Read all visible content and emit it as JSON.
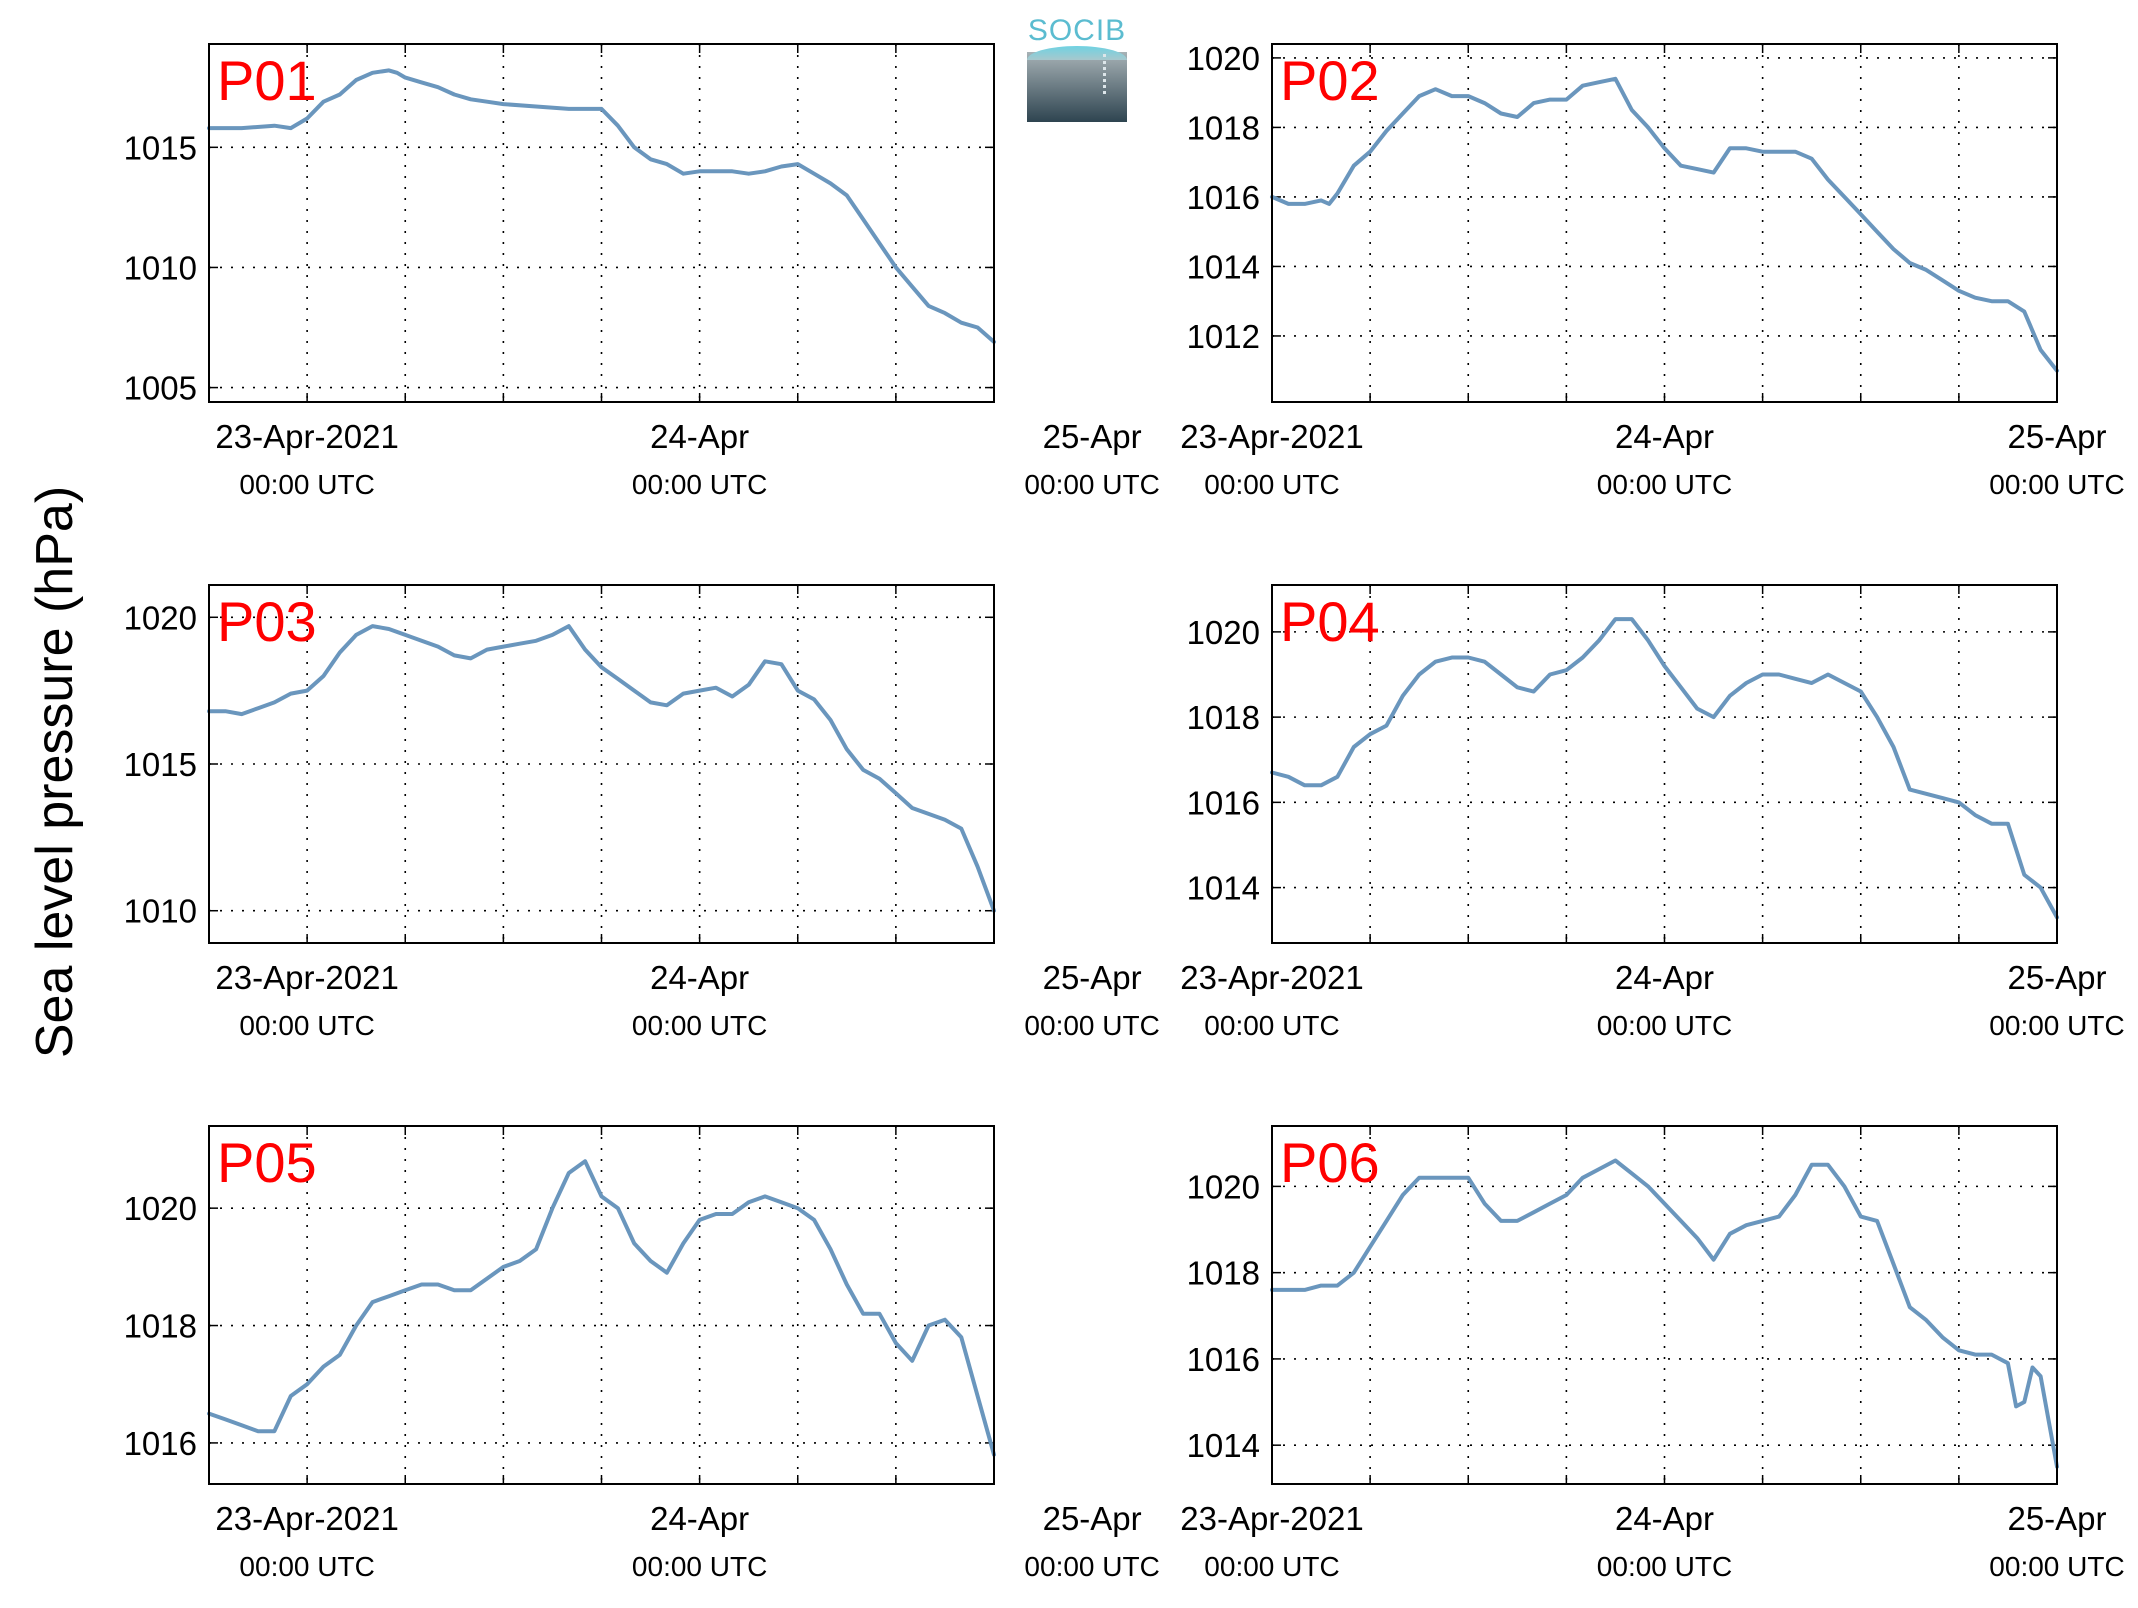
{
  "figure": {
    "ylabel": "Sea level pressure (hPa)",
    "logo_text": "SOCIB",
    "colors": {
      "line": "#6a96bd",
      "panel_label": "#ff0000",
      "axis": "#000000",
      "grid": "#000000"
    }
  },
  "chart_data": [
    {
      "type": "line",
      "title": "P01",
      "x_ticks": [
        {
          "top": "23-Apr-2021",
          "bottom": "00:00 UTC",
          "hour": 0
        },
        {
          "top": "24-Apr",
          "bottom": "00:00 UTC",
          "hour": 24
        },
        {
          "top": "25-Apr",
          "bottom": "00:00 UTC",
          "hour": 48
        }
      ],
      "xlim": [
        -6,
        42
      ],
      "ylim": [
        1004.4,
        1019.3
      ],
      "y_ticks": [
        1005,
        1010,
        1015
      ],
      "series": [
        {
          "x": [
            -6,
            -5,
            -4,
            -2,
            -1,
            0,
            1,
            2,
            2.5,
            3,
            4,
            5,
            5.5,
            6,
            7,
            8,
            9,
            10,
            11,
            12,
            14,
            16,
            18,
            19,
            20,
            21,
            22,
            23,
            24,
            25,
            26,
            27,
            28,
            29,
            30,
            31,
            32,
            33,
            34,
            35,
            36,
            37,
            38,
            39,
            40,
            41,
            42
          ],
          "y": [
            1015.8,
            1015.8,
            1015.8,
            1015.9,
            1015.8,
            1016.2,
            1016.9,
            1017.2,
            1017.5,
            1017.8,
            1018.1,
            1018.2,
            1018.1,
            1017.9,
            1017.7,
            1017.5,
            1017.2,
            1017.0,
            1016.9,
            1016.8,
            1016.7,
            1016.6,
            1016.6,
            1015.9,
            1015.0,
            1014.5,
            1014.3,
            1013.9,
            1014.0,
            1014.0,
            1014.0,
            1013.9,
            1014.0,
            1014.2,
            1014.3,
            1013.9,
            1013.5,
            1013.0,
            1012.0,
            1011.0,
            1010.0,
            1009.2,
            1008.4,
            1008.1,
            1007.7,
            1007.5,
            1006.9
          ]
        }
      ]
    },
    {
      "type": "line",
      "title": "P02",
      "x_ticks": [
        {
          "top": "23-Apr-2021",
          "bottom": "00:00 UTC",
          "hour": 0
        },
        {
          "top": "24-Apr",
          "bottom": "00:00 UTC",
          "hour": 24
        },
        {
          "top": "25-Apr",
          "bottom": "00:00 UTC",
          "hour": 48
        }
      ],
      "xlim": [
        0,
        48
      ],
      "ylim": [
        1010.1,
        1020.4
      ],
      "y_ticks": [
        1012,
        1014,
        1016,
        1018,
        1020
      ],
      "series": [
        {
          "x": [
            0,
            1,
            2,
            3,
            3.5,
            4,
            5,
            6,
            7,
            8,
            9,
            10,
            11,
            12,
            13,
            14,
            15,
            16,
            17,
            18,
            19,
            20,
            21,
            22,
            23,
            24,
            25,
            26,
            27,
            28,
            29,
            30,
            31,
            32,
            33,
            34,
            35,
            36,
            37,
            38,
            39,
            40,
            41,
            42,
            43,
            44,
            45,
            46,
            47,
            48
          ],
          "y": [
            1016.0,
            1015.8,
            1015.8,
            1015.9,
            1015.8,
            1016.1,
            1016.9,
            1017.3,
            1017.9,
            1018.4,
            1018.9,
            1019.1,
            1018.9,
            1018.9,
            1018.7,
            1018.4,
            1018.3,
            1018.7,
            1018.8,
            1018.8,
            1019.2,
            1019.3,
            1019.4,
            1018.5,
            1018.0,
            1017.4,
            1016.9,
            1016.8,
            1016.7,
            1017.4,
            1017.4,
            1017.3,
            1017.3,
            1017.3,
            1017.1,
            1016.5,
            1016.0,
            1015.5,
            1015.0,
            1014.5,
            1014.1,
            1013.9,
            1013.6,
            1013.3,
            1013.1,
            1013.0,
            1013.0,
            1012.7,
            1011.6,
            1011.0
          ]
        }
      ]
    },
    {
      "type": "line",
      "title": "P03",
      "x_ticks": [
        {
          "top": "23-Apr-2021",
          "bottom": "00:00 UTC",
          "hour": 0
        },
        {
          "top": "24-Apr",
          "bottom": "00:00 UTC",
          "hour": 24
        },
        {
          "top": "25-Apr",
          "bottom": "00:00 UTC",
          "hour": 48
        }
      ],
      "xlim": [
        -6,
        42
      ],
      "ylim": [
        1008.9,
        1021.1
      ],
      "y_ticks": [
        1010,
        1015,
        1020
      ],
      "series": [
        {
          "x": [
            -6,
            -5,
            -4,
            -3,
            -2,
            -1,
            0,
            1,
            2,
            3,
            4,
            5,
            6,
            7,
            8,
            9,
            10,
            11,
            12,
            13,
            14,
            15,
            16,
            17,
            18,
            19,
            20,
            21,
            22,
            23,
            24,
            25,
            26,
            27,
            28,
            29,
            30,
            31,
            32,
            33,
            34,
            35,
            36,
            37,
            38,
            39,
            40,
            41,
            42
          ],
          "y": [
            1016.8,
            1016.8,
            1016.7,
            1016.9,
            1017.1,
            1017.4,
            1017.5,
            1018.0,
            1018.8,
            1019.4,
            1019.7,
            1019.6,
            1019.4,
            1019.2,
            1019.0,
            1018.7,
            1018.6,
            1018.9,
            1019.0,
            1019.1,
            1019.2,
            1019.4,
            1019.7,
            1018.9,
            1018.3,
            1017.9,
            1017.5,
            1017.1,
            1017.0,
            1017.4,
            1017.5,
            1017.6,
            1017.3,
            1017.7,
            1018.5,
            1018.4,
            1017.5,
            1017.2,
            1016.5,
            1015.5,
            1014.8,
            1014.5,
            1014.0,
            1013.5,
            1013.3,
            1013.1,
            1012.8,
            1011.5,
            1010.0
          ]
        }
      ]
    },
    {
      "type": "line",
      "title": "P04",
      "x_ticks": [
        {
          "top": "23-Apr-2021",
          "bottom": "00:00 UTC",
          "hour": 0
        },
        {
          "top": "24-Apr",
          "bottom": "00:00 UTC",
          "hour": 24
        },
        {
          "top": "25-Apr",
          "bottom": "00:00 UTC",
          "hour": 48
        }
      ],
      "xlim": [
        0,
        48
      ],
      "ylim": [
        1012.7,
        1021.1
      ],
      "y_ticks": [
        1014,
        1016,
        1018,
        1020
      ],
      "series": [
        {
          "x": [
            0,
            1,
            2,
            3,
            4,
            5,
            6,
            7,
            8,
            9,
            10,
            11,
            12,
            13,
            14,
            15,
            16,
            17,
            18,
            19,
            20,
            21,
            22,
            23,
            24,
            25,
            26,
            27,
            28,
            29,
            30,
            31,
            32,
            33,
            34,
            35,
            36,
            37,
            38,
            39,
            40,
            41,
            42,
            43,
            44,
            45,
            46,
            47,
            48
          ],
          "y": [
            1016.7,
            1016.6,
            1016.4,
            1016.4,
            1016.6,
            1017.3,
            1017.6,
            1017.8,
            1018.5,
            1019.0,
            1019.3,
            1019.4,
            1019.4,
            1019.3,
            1019.0,
            1018.7,
            1018.6,
            1019.0,
            1019.1,
            1019.4,
            1019.8,
            1020.3,
            1020.3,
            1019.8,
            1019.2,
            1018.7,
            1018.2,
            1018.0,
            1018.5,
            1018.8,
            1019.0,
            1019.0,
            1018.9,
            1018.8,
            1019.0,
            1018.8,
            1018.6,
            1018.0,
            1017.3,
            1016.3,
            1016.2,
            1016.1,
            1016.0,
            1015.7,
            1015.5,
            1015.5,
            1014.3,
            1014.0,
            1013.3
          ]
        }
      ]
    },
    {
      "type": "line",
      "title": "P05",
      "x_ticks": [
        {
          "top": "23-Apr-2021",
          "bottom": "00:00 UTC",
          "hour": 0
        },
        {
          "top": "24-Apr",
          "bottom": "00:00 UTC",
          "hour": 24
        },
        {
          "top": "25-Apr",
          "bottom": "00:00 UTC",
          "hour": 48
        }
      ],
      "xlim": [
        -6,
        42
      ],
      "ylim": [
        1015.3,
        1021.4
      ],
      "y_ticks": [
        1016,
        1018,
        1020
      ],
      "series": [
        {
          "x": [
            -6,
            -5,
            -4,
            -3,
            -2,
            -1,
            0,
            1,
            2,
            3,
            4,
            5,
            6,
            7,
            8,
            9,
            10,
            11,
            12,
            13,
            14,
            15,
            16,
            17,
            18,
            19,
            20,
            21,
            22,
            23,
            24,
            25,
            26,
            27,
            28,
            29,
            30,
            31,
            32,
            33,
            34,
            35,
            36,
            37,
            38,
            39,
            40,
            41,
            42
          ],
          "y": [
            1016.5,
            1016.4,
            1016.3,
            1016.2,
            1016.2,
            1016.8,
            1017.0,
            1017.3,
            1017.5,
            1018.0,
            1018.4,
            1018.5,
            1018.6,
            1018.7,
            1018.7,
            1018.6,
            1018.6,
            1018.8,
            1019.0,
            1019.1,
            1019.3,
            1020.0,
            1020.6,
            1020.8,
            1020.2,
            1020.0,
            1019.4,
            1019.1,
            1018.9,
            1019.4,
            1019.8,
            1019.9,
            1019.9,
            1020.1,
            1020.2,
            1020.1,
            1020.0,
            1019.8,
            1019.3,
            1018.7,
            1018.2,
            1018.2,
            1017.7,
            1017.4,
            1018.0,
            1018.1,
            1017.8,
            1016.8,
            1015.8
          ]
        }
      ]
    },
    {
      "type": "line",
      "title": "P06",
      "x_ticks": [
        {
          "top": "23-Apr-2021",
          "bottom": "00:00 UTC",
          "hour": 0
        },
        {
          "top": "24-Apr",
          "bottom": "00:00 UTC",
          "hour": 24
        },
        {
          "top": "25-Apr",
          "bottom": "00:00 UTC",
          "hour": 48
        }
      ],
      "xlim": [
        0,
        48
      ],
      "ylim": [
        1013.1,
        1021.4
      ],
      "y_ticks": [
        1014,
        1016,
        1018,
        1020
      ],
      "series": [
        {
          "x": [
            0,
            1,
            2,
            3,
            4,
            5,
            6,
            7,
            8,
            9,
            10,
            11,
            12,
            13,
            14,
            15,
            16,
            17,
            18,
            19,
            20,
            21,
            22,
            23,
            24,
            25,
            26,
            27,
            28,
            29,
            30,
            31,
            32,
            33,
            34,
            35,
            36,
            37,
            38,
            39,
            40,
            41,
            42,
            43,
            44,
            45,
            45.5,
            46,
            46.5,
            47,
            48
          ],
          "y": [
            1017.6,
            1017.6,
            1017.6,
            1017.7,
            1017.7,
            1018.0,
            1018.6,
            1019.2,
            1019.8,
            1020.2,
            1020.2,
            1020.2,
            1020.2,
            1019.6,
            1019.2,
            1019.2,
            1019.4,
            1019.6,
            1019.8,
            1020.2,
            1020.4,
            1020.6,
            1020.3,
            1020.0,
            1019.6,
            1019.2,
            1018.8,
            1018.3,
            1018.9,
            1019.1,
            1019.2,
            1019.3,
            1019.8,
            1020.5,
            1020.5,
            1020.0,
            1019.3,
            1019.2,
            1018.2,
            1017.2,
            1016.9,
            1016.5,
            1016.2,
            1016.1,
            1016.1,
            1015.9,
            1014.9,
            1015.0,
            1015.8,
            1015.6,
            1013.5
          ]
        }
      ]
    }
  ]
}
